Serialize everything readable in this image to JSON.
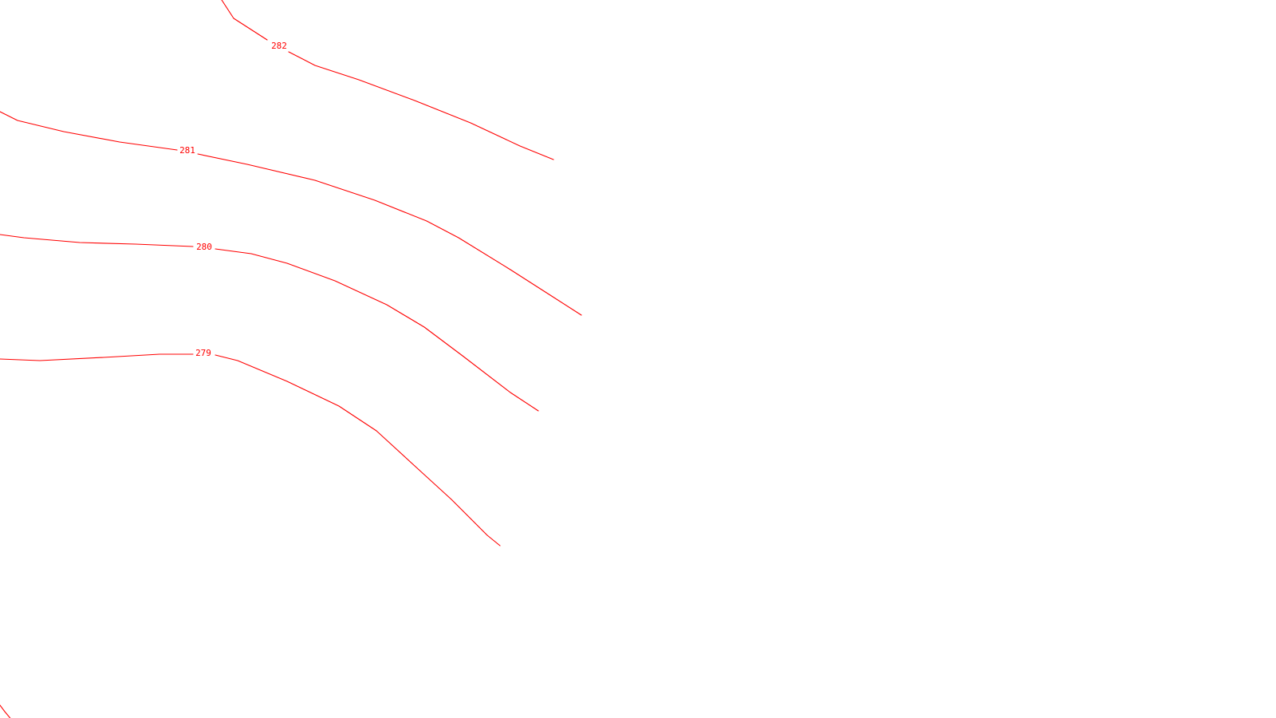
{
  "map": {
    "style": {
      "background": "#ffffff",
      "contour_color": "#ff0000"
    },
    "contours": [
      {
        "elevation": "282"
      },
      {
        "elevation": "281"
      },
      {
        "elevation": "280"
      },
      {
        "elevation": "279"
      },
      {
        "elevation": ""
      }
    ]
  }
}
